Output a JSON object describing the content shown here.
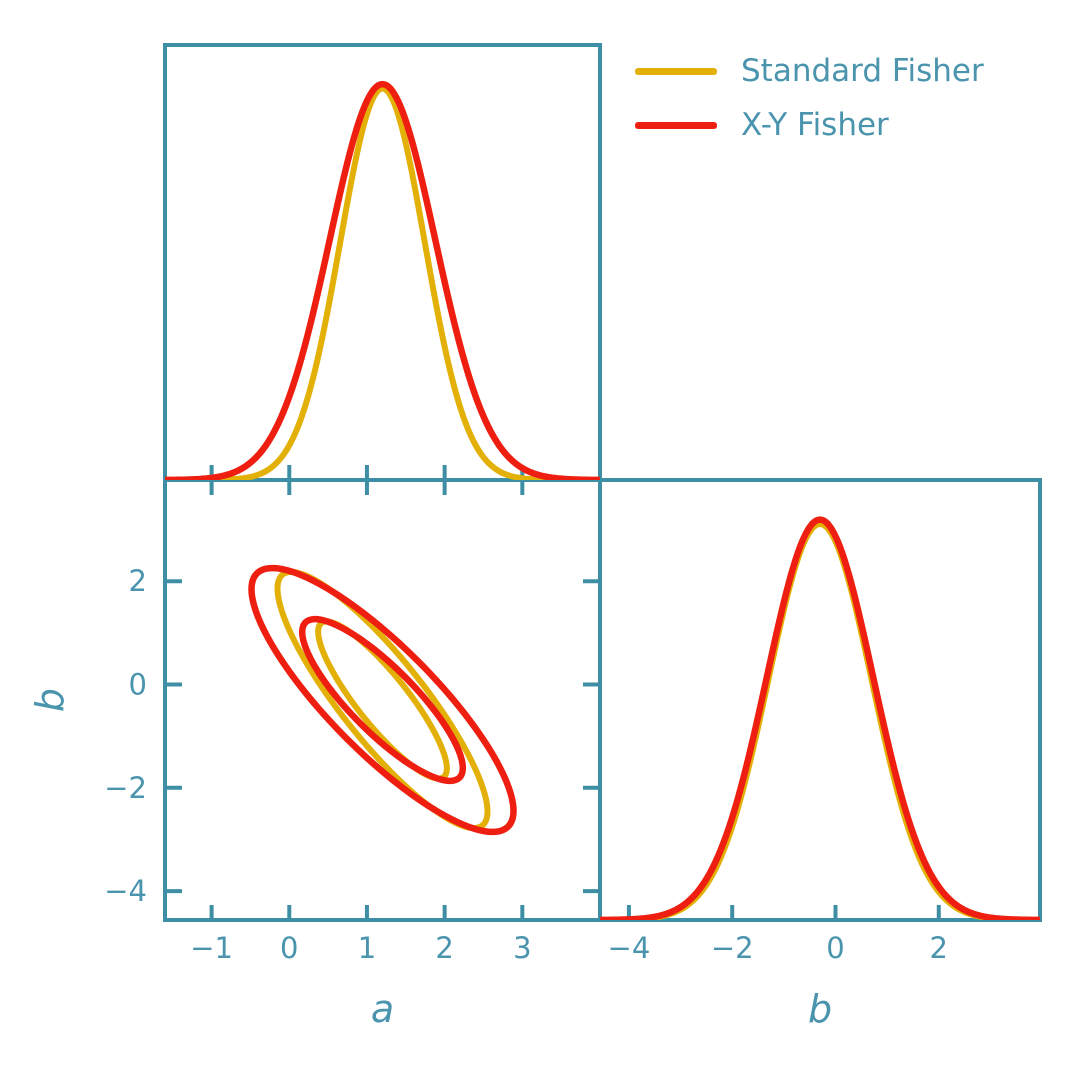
{
  "chart_data": {
    "type": "corner_plot",
    "legend": {
      "position": "top-right",
      "items": [
        {
          "label": "Standard Fisher",
          "color": "#E2B006"
        },
        {
          "label": "X-Y Fisher",
          "color": "#EE1E10"
        }
      ]
    },
    "style": {
      "axis_color": "#3E8FA6",
      "label_color": "#4A94AE",
      "background": "#ffffff",
      "spine_width": 4,
      "tick_width": 4,
      "tick_length": 15,
      "tick_font_size": 29,
      "grid": false
    },
    "parameters": {
      "a": {
        "label": "a",
        "min": -1.6,
        "max": 4.0,
        "ticks": [
          -1,
          0,
          1,
          2,
          3
        ]
      },
      "b": {
        "label": "b",
        "min": -4.56,
        "max": 3.96,
        "ticks": [
          -4,
          -2,
          0,
          2
        ]
      }
    },
    "panels": [
      {
        "id": "top",
        "type": "marginal-1d",
        "x": "a"
      },
      {
        "id": "joint",
        "type": "contour-2d",
        "x": "a",
        "y": "b"
      },
      {
        "id": "right",
        "type": "marginal-1d",
        "x": "b"
      }
    ],
    "contour_sigma_scales": [
      2.48,
      1.52
    ],
    "series": [
      {
        "name": "Standard Fisher",
        "color": "#E2B006",
        "mean": {
          "a": 1.2,
          "b": -0.3
        },
        "sigma": {
          "a": 0.545,
          "b": 1.0
        },
        "rho": -0.87,
        "amp_1d": 0.9,
        "line_width": 6
      },
      {
        "name": "X-Y Fisher",
        "color": "#EE1E10",
        "mean": {
          "a": 1.2,
          "b": -0.3
        },
        "sigma": {
          "a": 0.68,
          "b": 1.03
        },
        "rho": -0.84,
        "amp_1d": 0.91,
        "line_width": 6.5
      }
    ]
  }
}
